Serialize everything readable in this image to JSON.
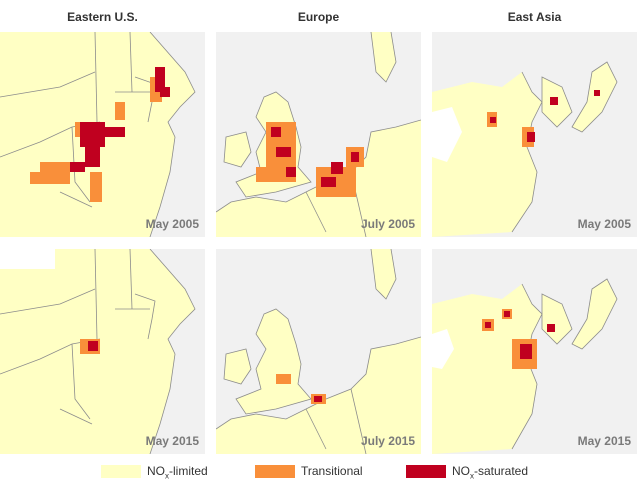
{
  "columns": [
    {
      "title": "Eastern U.S."
    },
    {
      "title": "Europe"
    },
    {
      "title": "East Asia"
    }
  ],
  "panels": [
    {
      "region": "Eastern U.S.",
      "date": "May 2005"
    },
    {
      "region": "Europe",
      "date": "July 2005"
    },
    {
      "region": "East Asia",
      "date": "May 2005"
    },
    {
      "region": "Eastern U.S.",
      "date": "May 2015"
    },
    {
      "region": "Europe",
      "date": "July 2015"
    },
    {
      "region": "East Asia",
      "date": "May 2015"
    }
  ],
  "legend": {
    "limited": {
      "pre": "NO",
      "sub": "x",
      "post": "-limited",
      "color": "#ffffc4"
    },
    "transitional": {
      "label": "Transitional",
      "color": "#f98f3a"
    },
    "saturated": {
      "pre": "NO",
      "sub": "x",
      "post": "-saturated",
      "color": "#c0001f"
    }
  },
  "colors": {
    "limited": "#ffffc4",
    "transitional": "#f98f3a",
    "saturated": "#c0001f",
    "no_data": "#f1f1f1",
    "border": "#8c8c8c"
  }
}
